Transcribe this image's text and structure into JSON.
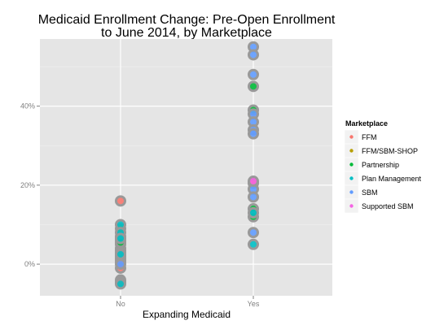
{
  "chart_data": {
    "type": "scatter",
    "title": "Medicaid Enrollment Change: Pre-Open Enrollment to June 2014, by Marketplace",
    "title_lines": [
      "Medicaid Enrollment Change: Pre-Open Enrollment",
      "to June 2014, by Marketplace"
    ],
    "xlabel": "Expanding Medicaid",
    "ylabel": "",
    "categories": [
      "No",
      "Yes"
    ],
    "ylim": [
      -0.08,
      0.57
    ],
    "yticks": [
      {
        "value": 0.0,
        "label": "0%"
      },
      {
        "value": 0.2,
        "label": "20%"
      },
      {
        "value": 0.4,
        "label": "40%"
      }
    ],
    "grid": true,
    "legend": {
      "title": "Marketplace",
      "placement": "right",
      "entries": [
        {
          "name": "FFM",
          "color": "#F8766D"
        },
        {
          "name": "FFM/SBM-SHOP",
          "color": "#B79F00"
        },
        {
          "name": "Partnership",
          "color": "#00BA38"
        },
        {
          "name": "Plan Management",
          "color": "#00BFC4"
        },
        {
          "name": "SBM",
          "color": "#619CFF"
        },
        {
          "name": "Supported SBM",
          "color": "#F564E3"
        }
      ]
    },
    "point_outline_color": "#999999",
    "series": [
      {
        "name": "FFM",
        "color": "#F8766D",
        "points": [
          {
            "x": "No",
            "y": 0.16
          },
          {
            "x": "No",
            "y": 0.07
          },
          {
            "x": "No",
            "y": 0.06
          },
          {
            "x": "No",
            "y": 0.05
          },
          {
            "x": "No",
            "y": 0.04
          },
          {
            "x": "No",
            "y": 0.035
          },
          {
            "x": "No",
            "y": 0.03
          },
          {
            "x": "No",
            "y": 0.02
          },
          {
            "x": "No",
            "y": 0.015
          },
          {
            "x": "No",
            "y": 0.01
          },
          {
            "x": "No",
            "y": 0.005
          },
          {
            "x": "No",
            "y": -0.01
          },
          {
            "x": "No",
            "y": -0.04
          },
          {
            "x": "No",
            "y": -0.045
          },
          {
            "x": "Yes",
            "y": 0.205
          }
        ]
      },
      {
        "name": "FFM/SBM-SHOP",
        "color": "#B79F00",
        "points": [
          {
            "x": "No",
            "y": 0.09
          }
        ]
      },
      {
        "name": "Partnership",
        "color": "#00BA38",
        "points": [
          {
            "x": "No",
            "y": 0.055
          },
          {
            "x": "Yes",
            "y": 0.45
          },
          {
            "x": "Yes",
            "y": 0.39
          },
          {
            "x": "Yes",
            "y": 0.14
          },
          {
            "x": "Yes",
            "y": 0.12
          }
        ]
      },
      {
        "name": "Plan Management",
        "color": "#00BFC4",
        "points": [
          {
            "x": "No",
            "y": 0.1
          },
          {
            "x": "No",
            "y": 0.08
          },
          {
            "x": "No",
            "y": 0.065
          },
          {
            "x": "No",
            "y": 0.025
          },
          {
            "x": "No",
            "y": -0.05
          },
          {
            "x": "Yes",
            "y": 0.13
          },
          {
            "x": "Yes",
            "y": 0.05
          }
        ]
      },
      {
        "name": "SBM",
        "color": "#619CFF",
        "points": [
          {
            "x": "No",
            "y": 0.0
          },
          {
            "x": "Yes",
            "y": 0.55
          },
          {
            "x": "Yes",
            "y": 0.53
          },
          {
            "x": "Yes",
            "y": 0.48
          },
          {
            "x": "Yes",
            "y": 0.38
          },
          {
            "x": "Yes",
            "y": 0.36
          },
          {
            "x": "Yes",
            "y": 0.34
          },
          {
            "x": "Yes",
            "y": 0.33
          },
          {
            "x": "Yes",
            "y": 0.19
          },
          {
            "x": "Yes",
            "y": 0.17
          },
          {
            "x": "Yes",
            "y": 0.08
          }
        ]
      },
      {
        "name": "Supported SBM",
        "color": "#F564E3",
        "points": [
          {
            "x": "Yes",
            "y": 0.21
          }
        ]
      }
    ]
  }
}
